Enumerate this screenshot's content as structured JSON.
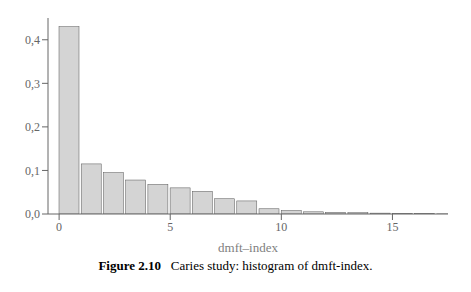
{
  "chart_data": {
    "type": "bar",
    "x": [
      0,
      1,
      2,
      3,
      4,
      5,
      6,
      7,
      8,
      9,
      10,
      11,
      12,
      13,
      14,
      15,
      16,
      17
    ],
    "values": [
      0.43,
      0.115,
      0.095,
      0.078,
      0.068,
      0.06,
      0.052,
      0.035,
      0.03,
      0.012,
      0.008,
      0.005,
      0.004,
      0.003,
      0.002,
      0.001,
      0.0008,
      0.0003
    ],
    "color": "#d4d4d4",
    "xlabel": "dmft–index",
    "xlim": [
      -0.5,
      17.5
    ],
    "xticks": [
      0,
      5,
      10,
      15
    ],
    "ylim": [
      0.0,
      0.45
    ],
    "yticks": [
      {
        "value": 0.0,
        "label": "0,0"
      },
      {
        "value": 0.1,
        "label": "0,1"
      },
      {
        "value": 0.2,
        "label": "0,2"
      },
      {
        "value": 0.3,
        "label": "0,3"
      },
      {
        "value": 0.4,
        "label": "0,4"
      }
    ],
    "annotations": [
      "Figure 2.10",
      "   Caries study: histogram of dmft-index."
    ]
  }
}
